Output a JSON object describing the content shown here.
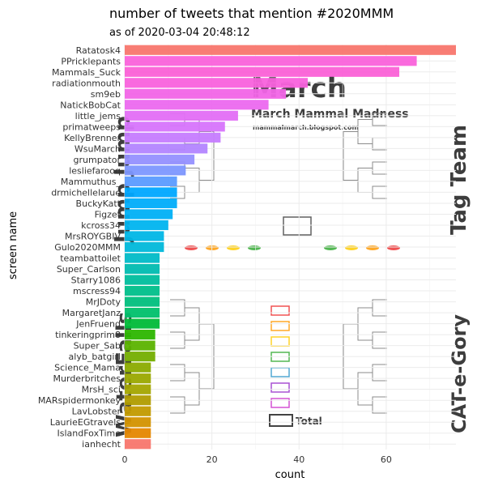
{
  "chart_data": {
    "type": "bar",
    "orientation": "horizontal",
    "title": "number of tweets that mention #2020MMM",
    "subtitle": "as of 2020-03-04 20:48:12",
    "xlabel": "count",
    "ylabel": "screen name",
    "xlim": [
      0,
      76
    ],
    "xticks": [
      0,
      20,
      40,
      60
    ],
    "grid": true,
    "legend": "none",
    "categories": [
      "Ratatosk4",
      "PPricklepants",
      "Mammals_Suck",
      "radiationmouth",
      "sm9eb",
      "NatickBobCat",
      "little_jems",
      "primatweeps",
      "KellyBrenner",
      "WsuMarch",
      "grumpator",
      "lesliefarooq",
      "Mammuthus_",
      "drmichellelarue",
      "BuckyKatt",
      "Figzet",
      "kcross34",
      "MrsROYGBIV",
      "Gulo2020MMM",
      "teambattoilet",
      "Super_Carlson",
      "Starry1086",
      "mscress94",
      "MrJDoty",
      "MargaretJanz",
      "JenFruend",
      "tinkeringprim8",
      "Super_Sab",
      "alyb_batgirl",
      "Science_Mama",
      "Murderbritches",
      "MrsH_sci",
      "MARspidermonkey",
      "LavLobster",
      "LaurieEGtravels",
      "IslandFoxTime",
      "ianhecht"
    ],
    "values": [
      76,
      67,
      63,
      42,
      37,
      33,
      26,
      23,
      22,
      19,
      16,
      14,
      12,
      12,
      12,
      11,
      10,
      9,
      9,
      8,
      8,
      8,
      8,
      8,
      8,
      8,
      7,
      7,
      7,
      6,
      6,
      6,
      6,
      6,
      6,
      6,
      6
    ],
    "colors": [
      "#F8766D",
      "#FA62DB",
      "#FB61D7",
      "#F962DD",
      "#F265E7",
      "#EC69EF",
      "#E36EF6",
      "#D774FC",
      "#C67CFF",
      "#B385FF",
      "#9590FF",
      "#7D97FF",
      "#5B9BFF",
      "#00A8FF",
      "#00ADFA",
      "#00B0F6",
      "#00B4EF",
      "#00B6E6",
      "#00B8DA",
      "#00BAC7",
      "#00BCB0",
      "#00BE9D",
      "#00BF8A",
      "#00BF7D",
      "#00C06B",
      "#00BA38",
      "#2CB600",
      "#5BB300",
      "#74AE00",
      "#8BAB00",
      "#9AA800",
      "#A3A500",
      "#B09C00",
      "#C29A00",
      "#D39200",
      "#E58700",
      "#F8766D"
    ]
  },
  "background_image": {
    "title": "March Mammal Madness",
    "subtitle": "mammalmarch.blogspot.com",
    "divisions": [
      "Tag Team",
      "Jump Jump",
      "CAT-e-Gory",
      "WaterFalls"
    ],
    "footer_label": "Total"
  }
}
